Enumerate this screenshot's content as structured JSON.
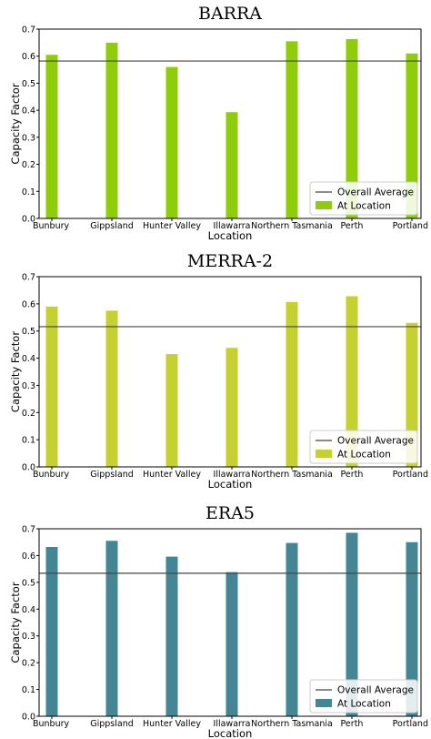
{
  "chart_data": [
    {
      "type": "bar",
      "title": "BARRA",
      "xlabel": "Location",
      "ylabel": "Capacity Factor",
      "ylim": [
        0,
        0.7
      ],
      "yticks": [
        "0.0",
        "0.1",
        "0.2",
        "0.3",
        "0.4",
        "0.5",
        "0.6",
        "0.7"
      ],
      "categories": [
        "Bunbury",
        "Gippsland",
        "Hunter Valley",
        "Illawarra",
        "Northern Tasmania",
        "Perth",
        "Portland"
      ],
      "values": [
        0.605,
        0.65,
        0.56,
        0.393,
        0.655,
        0.663,
        0.61
      ],
      "overall_average": 0.582,
      "bar_color": "#8fcc0c",
      "line_color": "#444444",
      "legend": {
        "position": "lower-right",
        "line_label": "Overall Average",
        "bar_label": "At Location"
      }
    },
    {
      "type": "bar",
      "title": "MERRA-2",
      "xlabel": "Location",
      "ylabel": "Capacity Factor",
      "ylim": [
        0,
        0.7
      ],
      "yticks": [
        "0.0",
        "0.1",
        "0.2",
        "0.3",
        "0.4",
        "0.5",
        "0.6",
        "0.7"
      ],
      "categories": [
        "Bunbury",
        "Gippsland",
        "Hunter Valley",
        "Illawarra",
        "Northern Tasmania",
        "Perth",
        "Portland"
      ],
      "values": [
        0.59,
        0.575,
        0.415,
        0.438,
        0.607,
        0.628,
        0.53
      ],
      "overall_average": 0.516,
      "bar_color": "#c5d130",
      "line_color": "#444444",
      "legend": {
        "position": "lower-right",
        "line_label": "Overall Average",
        "bar_label": "At Location"
      }
    },
    {
      "type": "bar",
      "title": "ERA5",
      "xlabel": "Location",
      "ylabel": "Capacity Factor",
      "ylim": [
        0,
        0.7
      ],
      "yticks": [
        "0.0",
        "0.1",
        "0.2",
        "0.3",
        "0.4",
        "0.5",
        "0.6",
        "0.7"
      ],
      "categories": [
        "Bunbury",
        "Gippsland",
        "Hunter Valley",
        "Illawarra",
        "Northern Tasmania",
        "Perth",
        "Portland"
      ],
      "values": [
        0.632,
        0.655,
        0.596,
        0.538,
        0.647,
        0.685,
        0.65
      ],
      "overall_average": 0.534,
      "bar_color": "#448694",
      "line_color": "#444444",
      "legend": {
        "position": "lower-right",
        "line_label": "Overall Average",
        "bar_label": "At Location"
      }
    }
  ]
}
